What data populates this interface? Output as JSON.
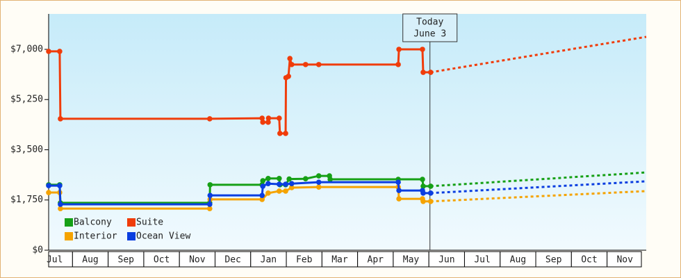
{
  "chart_data": {
    "type": "line",
    "xlim": [
      0.33,
      17.1
    ],
    "xticks": [
      {
        "value": 0.5,
        "label": "Jul"
      },
      {
        "value": 1.5,
        "label": "Aug"
      },
      {
        "value": 2.5,
        "label": "Sep"
      },
      {
        "value": 3.5,
        "label": "Oct"
      },
      {
        "value": 4.5,
        "label": "Nov"
      },
      {
        "value": 5.5,
        "label": "Dec"
      },
      {
        "value": 6.5,
        "label": "Jan"
      },
      {
        "value": 7.5,
        "label": "Feb"
      },
      {
        "value": 8.5,
        "label": "Mar"
      },
      {
        "value": 9.5,
        "label": "Apr"
      },
      {
        "value": 10.5,
        "label": "May"
      },
      {
        "value": 11.5,
        "label": "Jun"
      },
      {
        "value": 12.5,
        "label": "Jul"
      },
      {
        "value": 13.5,
        "label": "Aug"
      },
      {
        "value": 14.5,
        "label": "Sep"
      },
      {
        "value": 15.5,
        "label": "Oct"
      },
      {
        "value": 16.5,
        "label": "Nov"
      }
    ],
    "ylim": [
      0,
      8235
    ],
    "yticks": [
      {
        "value": 0,
        "label": "$0"
      },
      {
        "value": 1750,
        "label": "$1,750"
      },
      {
        "value": 3500,
        "label": "$3,500"
      },
      {
        "value": 5250,
        "label": "$5,250"
      },
      {
        "value": 7000,
        "label": "$7,000"
      }
    ],
    "legend": "lower left",
    "annotation": {
      "lines": [
        "Today",
        "June 3"
      ],
      "x": 11.03
    },
    "series": [
      {
        "name": "Balcony",
        "color": "#16a016",
        "x": [
          0.33,
          0.64,
          0.66,
          4.85,
          4.86,
          6.32,
          6.34,
          6.49,
          6.8,
          6.82,
          6.98,
          7.08,
          7.54,
          7.91,
          8.21,
          8.23,
          10.14,
          10.82,
          10.84,
          11.05
        ],
        "values": [
          2280,
          2280,
          1650,
          1650,
          2280,
          2280,
          2420,
          2500,
          2500,
          2280,
          2280,
          2480,
          2490,
          2590,
          2590,
          2470,
          2470,
          2470,
          2230,
          2230
        ],
        "forecast": {
          "x": [
            11.05,
            17.1
          ],
          "values": [
            2230,
            2710
          ]
        }
      },
      {
        "name": "Suite",
        "color": "#f03c0a",
        "x": [
          0.33,
          0.64,
          0.66,
          4.85,
          6.32,
          6.34,
          6.49,
          6.5,
          6.8,
          6.82,
          6.98,
          6.99,
          7.06,
          7.1,
          7.15,
          7.54,
          7.91,
          10.14,
          10.16,
          10.82,
          10.84,
          11.05
        ],
        "values": [
          6930,
          6930,
          4580,
          4580,
          4600,
          4460,
          4460,
          4600,
          4600,
          4070,
          4070,
          6010,
          6060,
          6680,
          6470,
          6470,
          6470,
          6470,
          7000,
          7000,
          6200,
          6200
        ],
        "forecast": {
          "x": [
            11.05,
            17.1
          ],
          "values": [
            6200,
            7435
          ]
        }
      },
      {
        "name": "Interior",
        "color": "#f5a300",
        "x": [
          0.33,
          0.64,
          0.66,
          4.85,
          4.86,
          6.32,
          6.49,
          6.8,
          6.98,
          7.15,
          7.91,
          10.14,
          10.16,
          10.82,
          10.84,
          11.05
        ],
        "values": [
          2010,
          2010,
          1450,
          1450,
          1770,
          1770,
          1990,
          2060,
          2060,
          2180,
          2200,
          2200,
          1790,
          1790,
          1700,
          1700
        ],
        "forecast": {
          "x": [
            11.05,
            17.1
          ],
          "values": [
            1700,
            2060
          ]
        }
      },
      {
        "name": "Ocean View",
        "color": "#0a3ee0",
        "x": [
          0.33,
          0.64,
          0.66,
          4.85,
          4.86,
          6.32,
          6.34,
          6.49,
          6.8,
          6.98,
          7.15,
          7.91,
          10.14,
          10.16,
          10.82,
          10.84,
          11.05
        ],
        "values": [
          2250,
          2250,
          1600,
          1600,
          1910,
          1910,
          2230,
          2320,
          2300,
          2300,
          2320,
          2370,
          2370,
          2080,
          2080,
          1990,
          1990
        ],
        "forecast": {
          "x": [
            11.05,
            17.1
          ],
          "values": [
            1990,
            2400
          ]
        }
      }
    ]
  }
}
